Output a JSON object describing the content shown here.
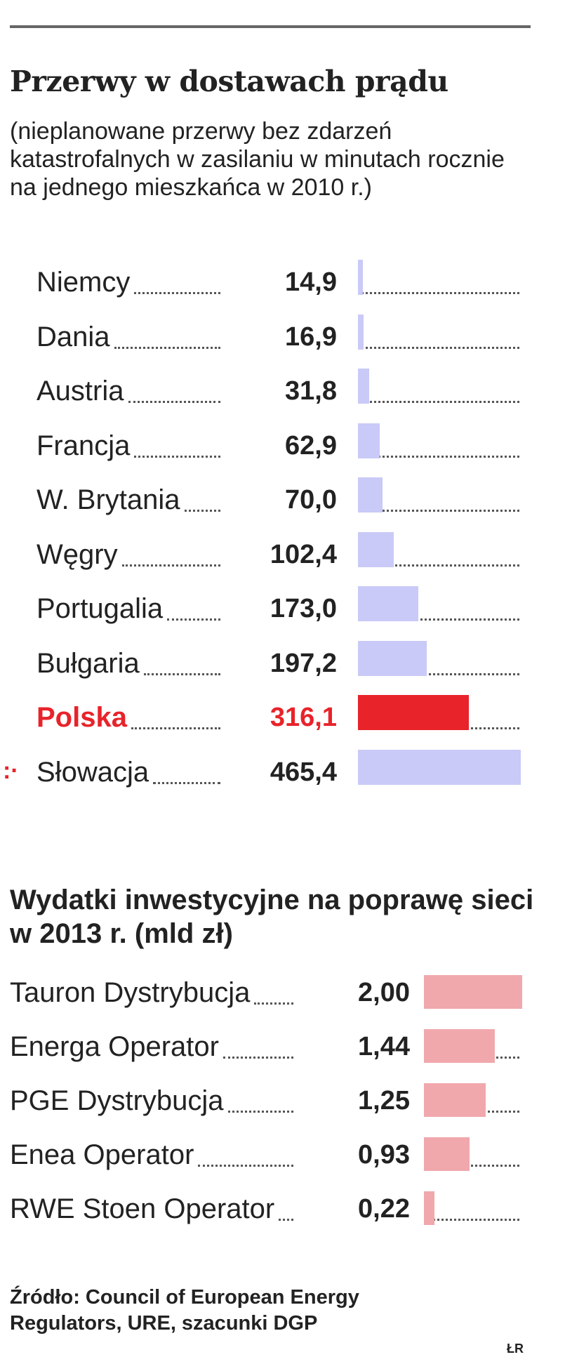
{
  "header": {
    "title": "Przerwy w dostawach prądu",
    "subtitle": "(nieplanowane przerwy bez zdarzeń katastrofalnych w zasilaniu w minutach rocznie na jednego mieszkańca w 2010 r.)"
  },
  "chart_data": [
    {
      "type": "bar",
      "orientation": "horizontal",
      "title": "Przerwy w dostawach prądu",
      "subtitle": "(nieplanowane przerwy bez zdarzeń katastrofalnych w zasilaniu w minutach rocznie na jednego mieszkańca w 2010 r.)",
      "categories": [
        "Niemcy",
        "Dania",
        "Austria",
        "Francja",
        "W. Brytania",
        "Węgry",
        "Portugalia",
        "Bułgaria",
        "Polska",
        "Słowacja"
      ],
      "values": [
        14.9,
        16.9,
        31.8,
        62.9,
        70.0,
        102.4,
        173.0,
        197.2,
        316.1,
        465.4
      ],
      "value_labels": [
        "14,9",
        "16,9",
        "31,8",
        "62,9",
        "70,0",
        "102,4",
        "173,0",
        "197,2",
        "316,1",
        "465,4"
      ],
      "highlight": "Polska",
      "marker": ":·",
      "xlim": [
        0,
        465.4
      ],
      "bar_color": "#c9caf7",
      "highlight_color": "#e8232a",
      "grid": false,
      "legend": "none"
    },
    {
      "type": "bar",
      "orientation": "horizontal",
      "title": "Wydatki inwestycyjne na poprawę sieci w 2013 r. (mld zł)",
      "categories": [
        "Tauron Dystrybucja",
        "Energa Operator",
        "PGE Dystrybucja",
        "Enea Operator",
        "RWE Stoen Operator"
      ],
      "values": [
        2.0,
        1.44,
        1.25,
        0.93,
        0.22
      ],
      "value_labels": [
        "2,00",
        "1,44",
        "1,25",
        "0,93",
        "0,22"
      ],
      "xlim": [
        0,
        2.0
      ],
      "bar_color": "#f0a8ad",
      "grid": false,
      "legend": "none"
    }
  ],
  "footer": {
    "source": "Źródło: Council of European Energy Regulators, URE, szacunki DGP",
    "credit": "ŁR"
  }
}
